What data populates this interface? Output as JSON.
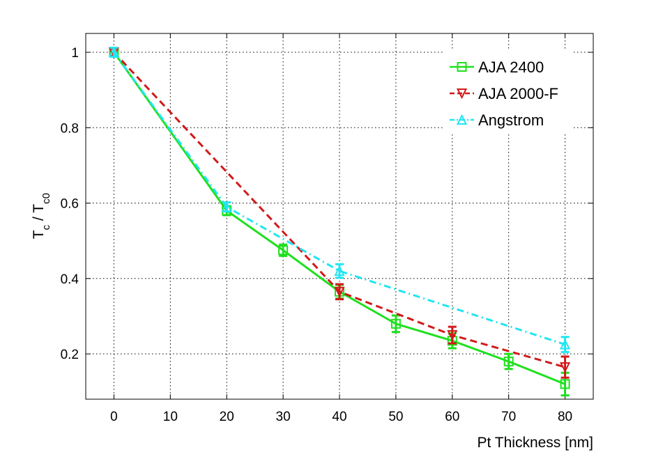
{
  "chart_data": {
    "type": "line",
    "title": "",
    "xlabel": "Pt Thickness [nm]",
    "ylabel": {
      "main": "T",
      "sub1": "c",
      "sep": " / T",
      "sub2": "c0"
    },
    "xlim": [
      -5,
      85
    ],
    "ylim": [
      0.08,
      1.05
    ],
    "xticks": [
      0,
      10,
      20,
      30,
      40,
      50,
      60,
      70,
      80
    ],
    "yticks": [
      0.2,
      0.4,
      0.6,
      0.8,
      1
    ],
    "xtick_labels": [
      "0",
      "10",
      "20",
      "30",
      "40",
      "50",
      "60",
      "70",
      "80"
    ],
    "ytick_labels": [
      "0.2",
      "0.4",
      "0.6",
      "0.8",
      "1"
    ],
    "grid": true,
    "legend_position": "top-right",
    "series": [
      {
        "name": "AJA 2400",
        "color": "#1ee01e",
        "linestyle": "solid",
        "marker": "square",
        "x": [
          0,
          20,
          30,
          40,
          50,
          60,
          70,
          80
        ],
        "y": [
          1.0,
          0.58,
          0.475,
          0.365,
          0.28,
          0.235,
          0.18,
          0.12
        ],
        "err": [
          0.01,
          0.012,
          0.015,
          0.018,
          0.022,
          0.02,
          0.02,
          0.03
        ]
      },
      {
        "name": "AJA 2000-F",
        "color": "#d11a1a",
        "linestyle": "dashed",
        "marker": "triangle-down",
        "x": [
          0,
          40,
          60,
          80
        ],
        "y": [
          1.0,
          0.365,
          0.25,
          0.165
        ],
        "err": [
          0.01,
          0.02,
          0.022,
          0.028
        ]
      },
      {
        "name": "Angstrom",
        "color": "#22e5f2",
        "linestyle": "dashdot",
        "marker": "triangle-up",
        "x": [
          0,
          20,
          40,
          80
        ],
        "y": [
          1.0,
          0.59,
          0.42,
          0.225
        ],
        "err": [
          0.012,
          0.012,
          0.018,
          0.02
        ]
      }
    ]
  }
}
